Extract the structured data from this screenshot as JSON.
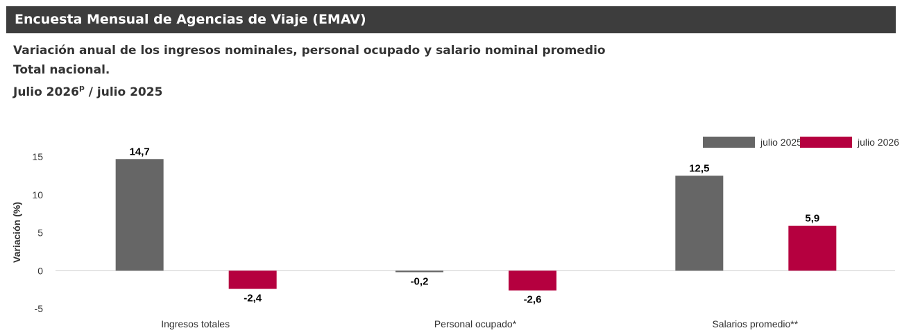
{
  "header": {
    "title": "Encuesta Mensual de Agencias de Viaje (EMAV)"
  },
  "subtitle": {
    "line1": "Variación anual de los ingresos nominales, personal ocupado y salario nominal promedio",
    "line2": "Total nacional.",
    "line3_part1": "Julio 2026",
    "line3_sup": "p",
    "line3_part2": " / julio 2025"
  },
  "colors": {
    "series_2025": "#666666",
    "series_2026": "#b5003f",
    "header_bg": "#3d3d3d"
  },
  "chart_data": {
    "type": "bar",
    "categories": [
      "Ingresos totales",
      "Personal ocupado*",
      "Salarios promedio**"
    ],
    "series": [
      {
        "name": "julio 2025",
        "values": [
          14.7,
          -0.2,
          12.5
        ],
        "labels": [
          "14,7",
          "-0,2",
          "12,5"
        ]
      },
      {
        "name": "julio 2026",
        "values": [
          -2.4,
          -2.6,
          5.9
        ],
        "labels": [
          "-2,4",
          "-2,6",
          "5,9"
        ]
      }
    ],
    "ylabel": "Variación (%)",
    "ylim": [
      -5,
      15
    ],
    "yticks": [
      15,
      10,
      5,
      0,
      -5
    ],
    "legend": "top-right",
    "grid": false
  }
}
